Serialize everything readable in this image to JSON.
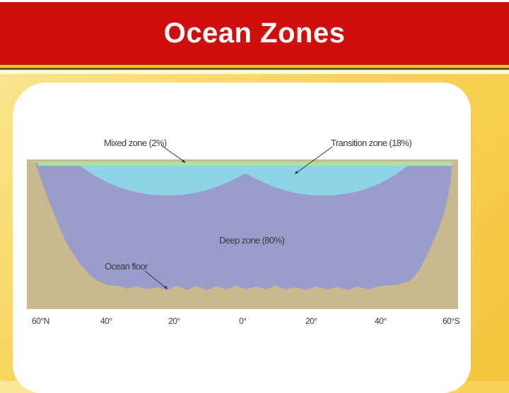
{
  "slide": {
    "title": "Ocean Zones"
  },
  "diagram": {
    "labels": {
      "mixed_zone": "Mixed zone (2%)",
      "transition_zone": "Transition zone (18%)",
      "deep_zone": "Deep zone (80%)",
      "ocean_floor": "Ocean floor"
    },
    "latitude_ticks": [
      "60°N",
      "40°",
      "20°",
      "0°",
      "20°",
      "40°",
      "60°S"
    ],
    "colors": {
      "mixed_zone": "#a9e3a1",
      "transition_zone": "#8fd4e6",
      "deep_zone": "#9a9ccc",
      "land": "#c8b98f",
      "title_bar": "#d00e0e",
      "background": "#f8d55c"
    }
  }
}
